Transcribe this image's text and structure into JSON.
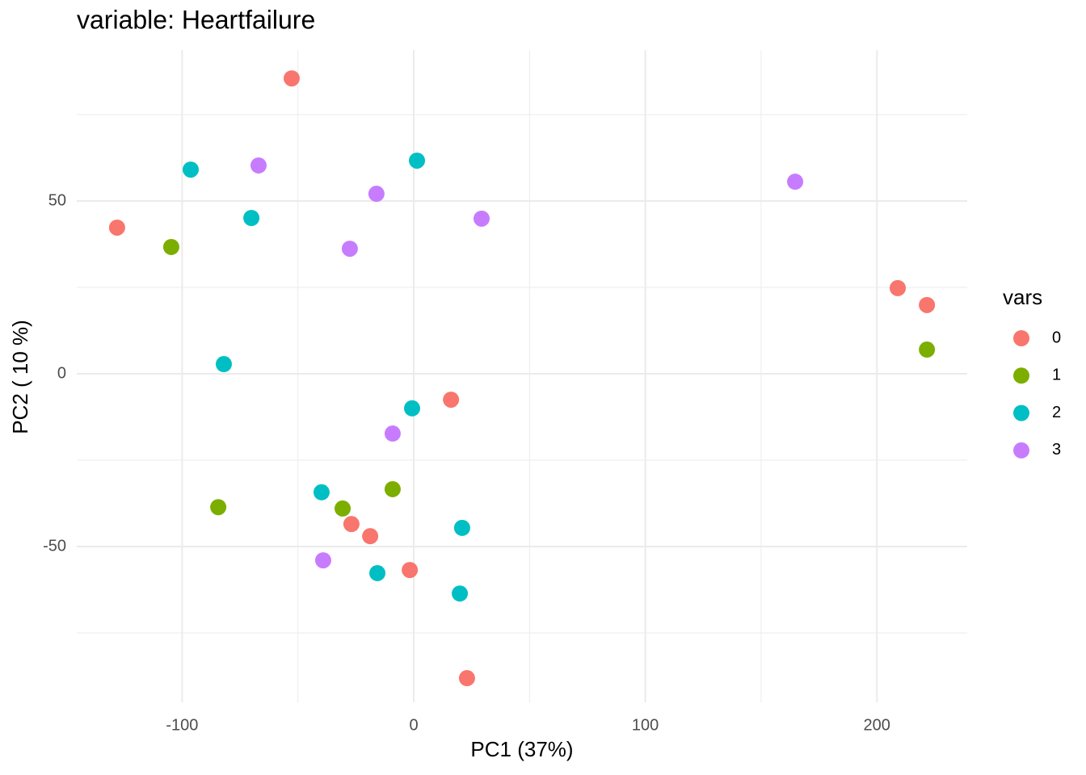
{
  "chart_data": {
    "type": "scatter",
    "title": "variable: Heartfailure",
    "x_label": "PC1 (37%)",
    "y_label": "PC2 ( 10 %)",
    "legend_title": "vars",
    "legend_position": "right",
    "grid": true,
    "xlim": [
      -145.5,
      239.0
    ],
    "ylim": [
      -95.1,
      93.7
    ],
    "xticks": [
      -100,
      0,
      100,
      200
    ],
    "yticks": [
      -50,
      0,
      50
    ],
    "minor_xticks": [
      -50,
      50,
      150
    ],
    "minor_yticks": [
      -75,
      -25,
      25,
      75
    ],
    "series": [
      {
        "name": "0",
        "color": "#F8766D",
        "x": [
          -52.7,
          -128.1,
          209.0,
          221.6,
          16.1,
          -26.9,
          -18.8,
          -1.7,
          23.0
        ],
        "values": [
          85.5,
          42.3,
          24.8,
          19.9,
          -7.5,
          -43.5,
          -47.0,
          -56.8,
          -88.1
        ]
      },
      {
        "name": "1",
        "color": "#7CAE00",
        "x": [
          -104.7,
          221.6,
          -84.4,
          -30.7,
          -9.1
        ],
        "values": [
          36.7,
          7.0,
          -38.6,
          -39.0,
          -33.4
        ]
      },
      {
        "name": "2",
        "color": "#00BFC4",
        "x": [
          -96.3,
          1.4,
          -70.1,
          -82.0,
          -0.7,
          -39.8,
          20.9,
          -15.7,
          19.9
        ],
        "values": [
          59.1,
          61.7,
          45.1,
          2.8,
          -10.0,
          -34.3,
          -44.6,
          -57.7,
          -63.6
        ]
      },
      {
        "name": "3",
        "color": "#C77CFF",
        "x": [
          -67.0,
          -16.1,
          29.3,
          -27.6,
          164.7,
          -9.1,
          -39.1
        ],
        "values": [
          60.3,
          52.1,
          44.9,
          36.2,
          55.6,
          -17.3,
          -54.0
        ]
      }
    ]
  }
}
